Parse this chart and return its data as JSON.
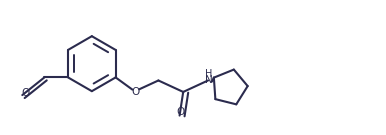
{
  "background_color": "#ffffff",
  "line_color": "#2b2b4e",
  "line_width": 1.5,
  "figsize": [
    3.86,
    1.35
  ],
  "dpi": 100,
  "xlim": [
    0,
    10.0
  ],
  "ylim": [
    0,
    3.5
  ]
}
